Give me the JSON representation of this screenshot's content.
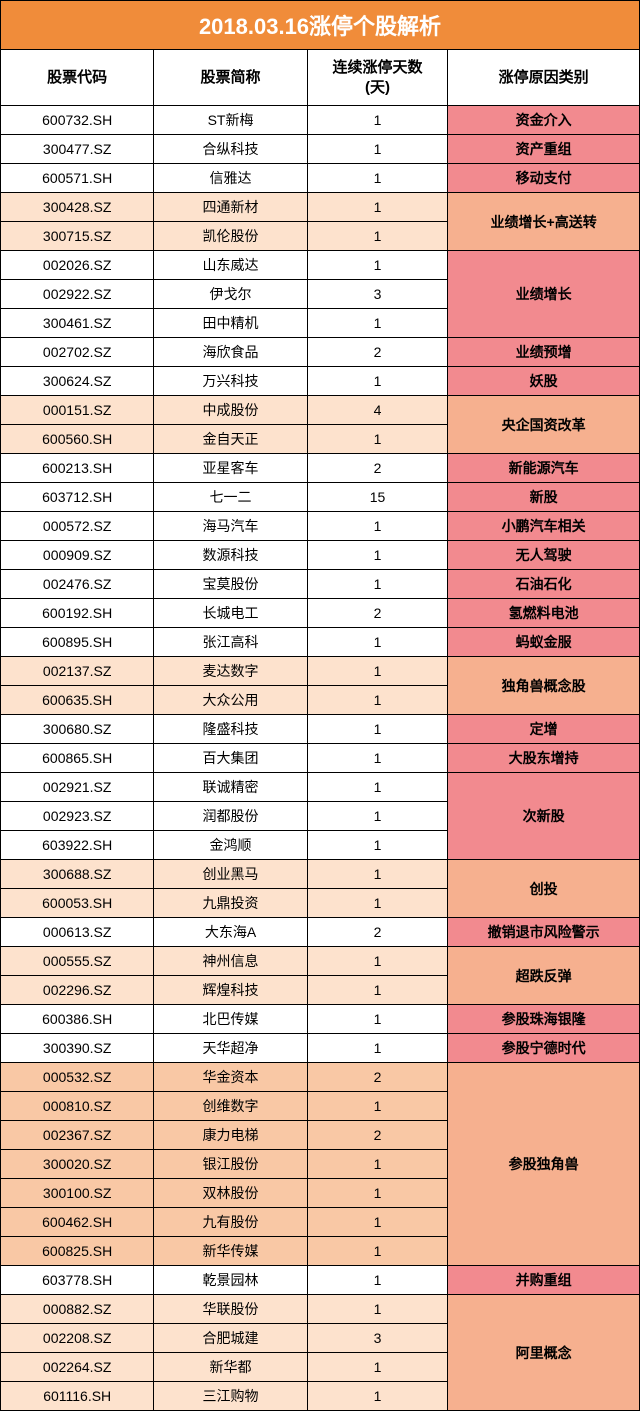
{
  "title": "2018.03.16涨停个股解析",
  "headers": {
    "code": "股票代码",
    "name": "股票简称",
    "days": "连续涨停天数\n(天)",
    "reason": "涨停原因类别"
  },
  "colors": {
    "title_bg": "#f08c3a",
    "white": "#ffffff",
    "tint_light": "#fde2cd",
    "tint_mid": "#f9c8a5",
    "reason_pink": "#f28a8f",
    "reason_salmon": "#f6b08f",
    "border": "#000000"
  },
  "groups": [
    {
      "reason": "资金介入",
      "reason_bg": "#f28a8f",
      "rows": [
        {
          "code": "600732.SH",
          "name": "ST新梅",
          "days": "1",
          "row_bg": "#ffffff"
        }
      ]
    },
    {
      "reason": "资产重组",
      "reason_bg": "#f28a8f",
      "rows": [
        {
          "code": "300477.SZ",
          "name": "合纵科技",
          "days": "1",
          "row_bg": "#ffffff"
        }
      ]
    },
    {
      "reason": "移动支付",
      "reason_bg": "#f28a8f",
      "rows": [
        {
          "code": "600571.SH",
          "name": "信雅达",
          "days": "1",
          "row_bg": "#ffffff"
        }
      ]
    },
    {
      "reason": "业绩增长+高送转",
      "reason_bg": "#f6b08f",
      "rows": [
        {
          "code": "300428.SZ",
          "name": "四通新材",
          "days": "1",
          "row_bg": "#fde2cd"
        },
        {
          "code": "300715.SZ",
          "name": "凯伦股份",
          "days": "1",
          "row_bg": "#fde2cd"
        }
      ]
    },
    {
      "reason": "业绩增长",
      "reason_bg": "#f28a8f",
      "rows": [
        {
          "code": "002026.SZ",
          "name": "山东威达",
          "days": "1",
          "row_bg": "#ffffff"
        },
        {
          "code": "002922.SZ",
          "name": "伊戈尔",
          "days": "3",
          "row_bg": "#ffffff"
        },
        {
          "code": "300461.SZ",
          "name": "田中精机",
          "days": "1",
          "row_bg": "#ffffff"
        }
      ]
    },
    {
      "reason": "业绩预增",
      "reason_bg": "#f28a8f",
      "rows": [
        {
          "code": "002702.SZ",
          "name": "海欣食品",
          "days": "2",
          "row_bg": "#ffffff"
        }
      ]
    },
    {
      "reason": "妖股",
      "reason_bg": "#f28a8f",
      "rows": [
        {
          "code": "300624.SZ",
          "name": "万兴科技",
          "days": "1",
          "row_bg": "#ffffff"
        }
      ]
    },
    {
      "reason": "央企国资改革",
      "reason_bg": "#f6b08f",
      "rows": [
        {
          "code": "000151.SZ",
          "name": "中成股份",
          "days": "4",
          "row_bg": "#fde2cd"
        },
        {
          "code": "600560.SH",
          "name": "金自天正",
          "days": "1",
          "row_bg": "#fde2cd"
        }
      ]
    },
    {
      "reason": "新能源汽车",
      "reason_bg": "#f28a8f",
      "rows": [
        {
          "code": "600213.SH",
          "name": "亚星客车",
          "days": "2",
          "row_bg": "#ffffff"
        }
      ]
    },
    {
      "reason": "新股",
      "reason_bg": "#f28a8f",
      "rows": [
        {
          "code": "603712.SH",
          "name": "七一二",
          "days": "15",
          "row_bg": "#ffffff"
        }
      ]
    },
    {
      "reason": "小鹏汽车相关",
      "reason_bg": "#f28a8f",
      "rows": [
        {
          "code": "000572.SZ",
          "name": "海马汽车",
          "days": "1",
          "row_bg": "#ffffff"
        }
      ]
    },
    {
      "reason": "无人驾驶",
      "reason_bg": "#f28a8f",
      "rows": [
        {
          "code": "000909.SZ",
          "name": "数源科技",
          "days": "1",
          "row_bg": "#ffffff"
        }
      ]
    },
    {
      "reason": "石油石化",
      "reason_bg": "#f28a8f",
      "rows": [
        {
          "code": "002476.SZ",
          "name": "宝莫股份",
          "days": "1",
          "row_bg": "#ffffff"
        }
      ]
    },
    {
      "reason": "氢燃料电池",
      "reason_bg": "#f28a8f",
      "rows": [
        {
          "code": "600192.SH",
          "name": "长城电工",
          "days": "2",
          "row_bg": "#ffffff"
        }
      ]
    },
    {
      "reason": "蚂蚁金服",
      "reason_bg": "#f28a8f",
      "rows": [
        {
          "code": "600895.SH",
          "name": "张江高科",
          "days": "1",
          "row_bg": "#ffffff"
        }
      ]
    },
    {
      "reason": "独角兽概念股",
      "reason_bg": "#f6b08f",
      "rows": [
        {
          "code": "002137.SZ",
          "name": "麦达数字",
          "days": "1",
          "row_bg": "#fde2cd"
        },
        {
          "code": "600635.SH",
          "name": "大众公用",
          "days": "1",
          "row_bg": "#fde2cd"
        }
      ]
    },
    {
      "reason": "定增",
      "reason_bg": "#f28a8f",
      "rows": [
        {
          "code": "300680.SZ",
          "name": "隆盛科技",
          "days": "1",
          "row_bg": "#ffffff"
        }
      ]
    },
    {
      "reason": "大股东增持",
      "reason_bg": "#f28a8f",
      "rows": [
        {
          "code": "600865.SH",
          "name": "百大集团",
          "days": "1",
          "row_bg": "#ffffff"
        }
      ]
    },
    {
      "reason": "次新股",
      "reason_bg": "#f28a8f",
      "rows": [
        {
          "code": "002921.SZ",
          "name": "联诚精密",
          "days": "1",
          "row_bg": "#ffffff"
        },
        {
          "code": "002923.SZ",
          "name": "润都股份",
          "days": "1",
          "row_bg": "#ffffff"
        },
        {
          "code": "603922.SH",
          "name": "金鸿顺",
          "days": "1",
          "row_bg": "#ffffff"
        }
      ]
    },
    {
      "reason": "创投",
      "reason_bg": "#f6b08f",
      "rows": [
        {
          "code": "300688.SZ",
          "name": "创业黑马",
          "days": "1",
          "row_bg": "#fde2cd"
        },
        {
          "code": "600053.SH",
          "name": "九鼎投资",
          "days": "1",
          "row_bg": "#fde2cd"
        }
      ]
    },
    {
      "reason": "撤销退市风险警示",
      "reason_bg": "#f28a8f",
      "rows": [
        {
          "code": "000613.SZ",
          "name": "大东海A",
          "days": "2",
          "row_bg": "#ffffff"
        }
      ]
    },
    {
      "reason": "超跌反弹",
      "reason_bg": "#f6b08f",
      "rows": [
        {
          "code": "000555.SZ",
          "name": "神州信息",
          "days": "1",
          "row_bg": "#fde2cd"
        },
        {
          "code": "002296.SZ",
          "name": "辉煌科技",
          "days": "1",
          "row_bg": "#fde2cd"
        }
      ]
    },
    {
      "reason": "参股珠海银隆",
      "reason_bg": "#f28a8f",
      "rows": [
        {
          "code": "600386.SH",
          "name": "北巴传媒",
          "days": "1",
          "row_bg": "#ffffff"
        }
      ]
    },
    {
      "reason": "参股宁德时代",
      "reason_bg": "#f28a8f",
      "rows": [
        {
          "code": "300390.SZ",
          "name": "天华超净",
          "days": "1",
          "row_bg": "#ffffff"
        }
      ]
    },
    {
      "reason": "参股独角兽",
      "reason_bg": "#f6b08f",
      "rows": [
        {
          "code": "000532.SZ",
          "name": "华金资本",
          "days": "2",
          "row_bg": "#f9c8a5"
        },
        {
          "code": "000810.SZ",
          "name": "创维数字",
          "days": "1",
          "row_bg": "#f9c8a5"
        },
        {
          "code": "002367.SZ",
          "name": "康力电梯",
          "days": "2",
          "row_bg": "#f9c8a5"
        },
        {
          "code": "300020.SZ",
          "name": "银江股份",
          "days": "1",
          "row_bg": "#f9c8a5"
        },
        {
          "code": "300100.SZ",
          "name": "双林股份",
          "days": "1",
          "row_bg": "#f9c8a5"
        },
        {
          "code": "600462.SH",
          "name": "九有股份",
          "days": "1",
          "row_bg": "#f9c8a5"
        },
        {
          "code": "600825.SH",
          "name": "新华传媒",
          "days": "1",
          "row_bg": "#f9c8a5"
        }
      ]
    },
    {
      "reason": "并购重组",
      "reason_bg": "#f28a8f",
      "rows": [
        {
          "code": "603778.SH",
          "name": "乾景园林",
          "days": "1",
          "row_bg": "#ffffff"
        }
      ]
    },
    {
      "reason": "阿里概念",
      "reason_bg": "#f6b08f",
      "rows": [
        {
          "code": "000882.SZ",
          "name": "华联股份",
          "days": "1",
          "row_bg": "#fde2cd"
        },
        {
          "code": "002208.SZ",
          "name": "合肥城建",
          "days": "3",
          "row_bg": "#fde2cd"
        },
        {
          "code": "002264.SZ",
          "name": "新华都",
          "days": "1",
          "row_bg": "#fde2cd"
        },
        {
          "code": "601116.SH",
          "name": "三江购物",
          "days": "1",
          "row_bg": "#fde2cd"
        }
      ]
    }
  ]
}
